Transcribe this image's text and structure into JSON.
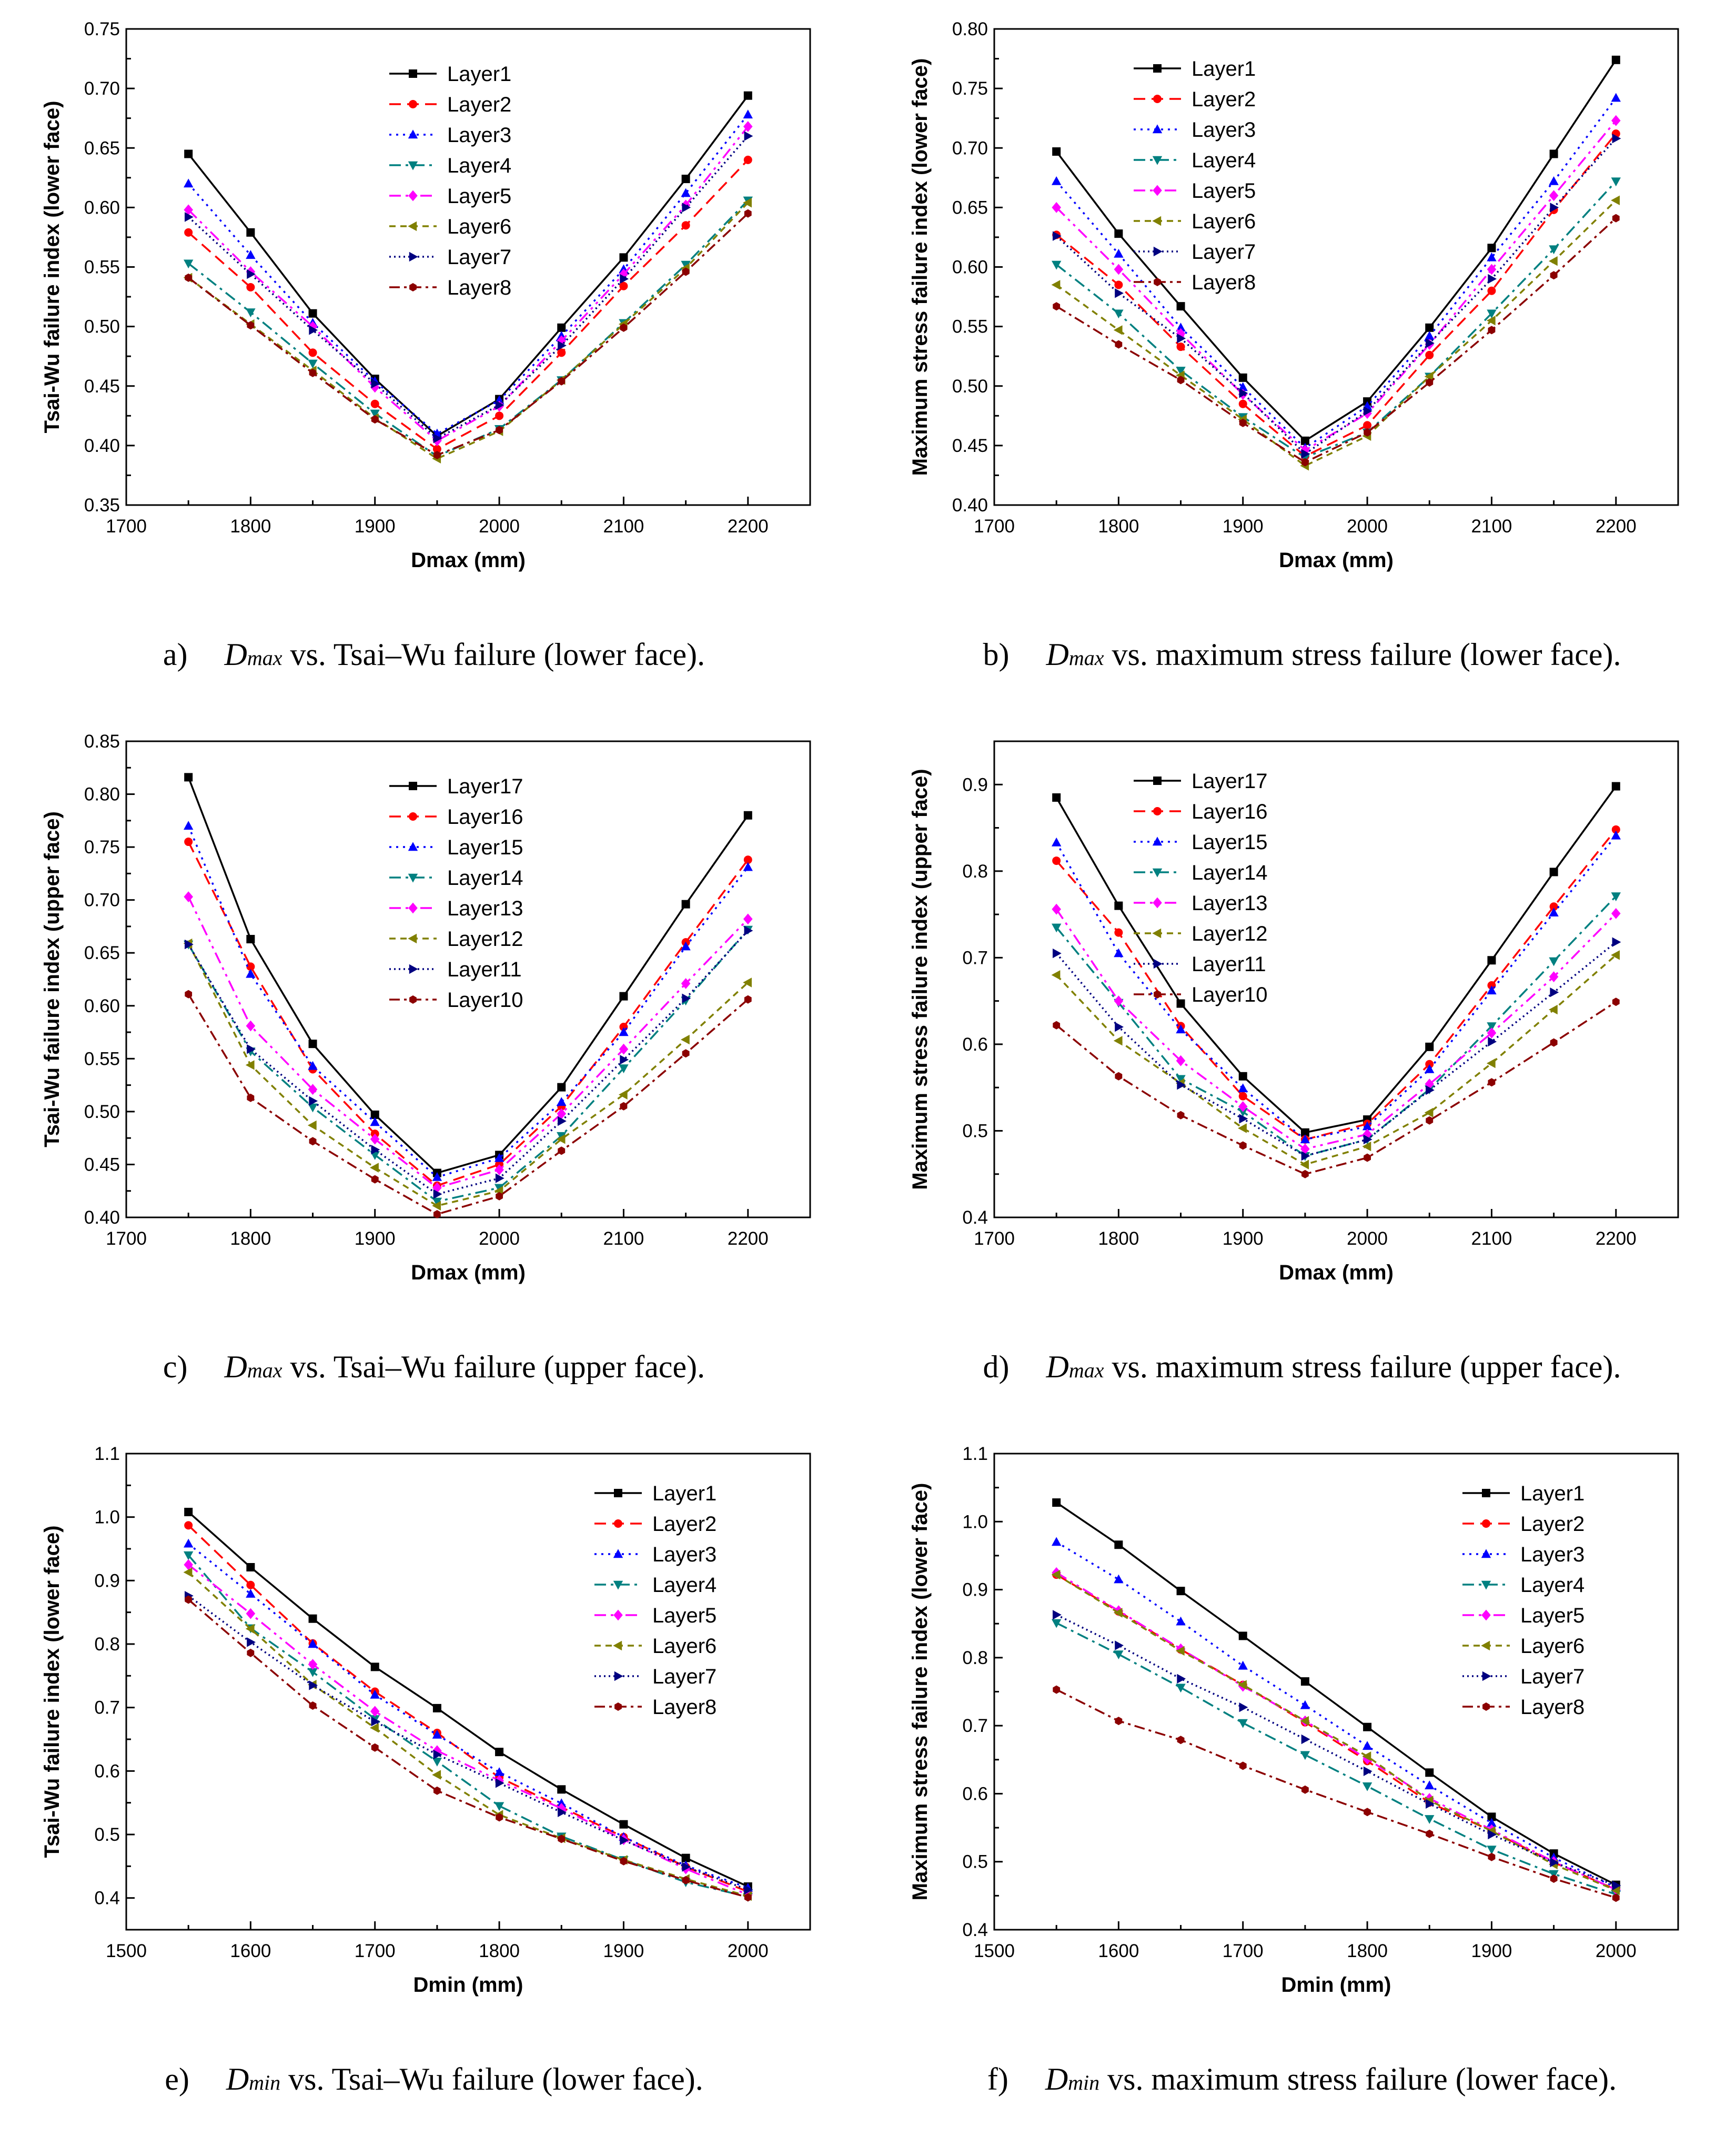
{
  "series_styles": [
    {
      "color": "#000000",
      "dash": "none",
      "marker": "square"
    },
    {
      "color": "#ff0000",
      "dash": "22,12",
      "marker": "circle"
    },
    {
      "color": "#0000ff",
      "dash": "4,9",
      "marker": "triangle-up"
    },
    {
      "color": "#008080",
      "dash": "22,9,5,9",
      "marker": "triangle-down"
    },
    {
      "color": "#ff00ff",
      "dash": "22,9,5,9,5,9",
      "marker": "diamond"
    },
    {
      "color": "#808000",
      "dash": "12,9",
      "marker": "triangle-left"
    },
    {
      "color": "#000080",
      "dash": "3,6",
      "marker": "triangle-right"
    },
    {
      "color": "#8b0000",
      "dash": "20,8,5,8",
      "marker": "hexagon"
    }
  ],
  "chart_data": [
    {
      "type": "line",
      "caption": {
        "label": "a)",
        "var": "D",
        "sub": "max",
        "text": " vs. Tsai–Wu failure (lower face)."
      },
      "xlabel": "Dmax (mm)",
      "ylabel": "Tsai-Wu failure index (lower face)",
      "xlim": [
        1700,
        2250
      ],
      "ylim": [
        0.35,
        0.75
      ],
      "xticks": [
        1700,
        1800,
        1900,
        2000,
        2100,
        2200
      ],
      "yticks": [
        0.35,
        0.4,
        0.45,
        0.5,
        0.55,
        0.6,
        0.65,
        0.7,
        0.75
      ],
      "ydec": 2,
      "legend": "top-center",
      "x": [
        1750,
        1800,
        1850,
        1900,
        1950,
        2000,
        2050,
        2100,
        2150,
        2200
      ],
      "series": [
        {
          "name": "Layer1",
          "values": [
            0.645,
            0.579,
            0.511,
            0.456,
            0.408,
            0.439,
            0.499,
            0.558,
            0.624,
            0.694
          ]
        },
        {
          "name": "Layer2",
          "values": [
            0.579,
            0.533,
            0.478,
            0.435,
            0.397,
            0.425,
            0.478,
            0.534,
            0.585,
            0.64
          ]
        },
        {
          "name": "Layer3",
          "values": [
            0.62,
            0.56,
            0.503,
            0.454,
            0.41,
            0.438,
            0.492,
            0.548,
            0.612,
            0.678
          ]
        },
        {
          "name": "Layer4",
          "values": [
            0.553,
            0.512,
            0.469,
            0.427,
            0.391,
            0.414,
            0.455,
            0.503,
            0.552,
            0.606
          ]
        },
        {
          "name": "Layer5",
          "values": [
            0.598,
            0.546,
            0.5,
            0.449,
            0.404,
            0.433,
            0.488,
            0.544,
            0.602,
            0.668
          ]
        },
        {
          "name": "Layer6",
          "values": [
            0.541,
            0.502,
            0.463,
            0.423,
            0.389,
            0.412,
            0.455,
            0.502,
            0.549,
            0.604
          ]
        },
        {
          "name": "Layer7",
          "values": [
            0.592,
            0.544,
            0.497,
            0.452,
            0.406,
            0.434,
            0.484,
            0.54,
            0.6,
            0.66
          ]
        },
        {
          "name": "Layer8",
          "values": [
            0.541,
            0.501,
            0.461,
            0.422,
            0.392,
            0.413,
            0.454,
            0.499,
            0.546,
            0.595
          ]
        }
      ]
    },
    {
      "type": "line",
      "caption": {
        "label": "b)",
        "var": "D",
        "sub": "max",
        "text": " vs. maximum stress failure (lower face)."
      },
      "xlabel": "Dmax (mm)",
      "ylabel": "Maximum stress failure index (lower face)",
      "xlim": [
        1700,
        2250
      ],
      "ylim": [
        0.4,
        0.8
      ],
      "xticks": [
        1700,
        1800,
        1900,
        2000,
        2100,
        2200
      ],
      "yticks": [
        0.4,
        0.45,
        0.5,
        0.55,
        0.6,
        0.65,
        0.7,
        0.75,
        0.8
      ],
      "ydec": 2,
      "legend": "top-left",
      "x": [
        1750,
        1800,
        1850,
        1900,
        1950,
        2000,
        2050,
        2100,
        2150,
        2200
      ],
      "series": [
        {
          "name": "Layer1",
          "values": [
            0.697,
            0.628,
            0.567,
            0.507,
            0.454,
            0.487,
            0.549,
            0.616,
            0.695,
            0.774
          ]
        },
        {
          "name": "Layer2",
          "values": [
            0.627,
            0.585,
            0.533,
            0.485,
            0.441,
            0.467,
            0.526,
            0.58,
            0.648,
            0.712
          ]
        },
        {
          "name": "Layer3",
          "values": [
            0.672,
            0.611,
            0.549,
            0.499,
            0.448,
            0.483,
            0.542,
            0.608,
            0.672,
            0.742
          ]
        },
        {
          "name": "Layer4",
          "values": [
            0.602,
            0.561,
            0.513,
            0.474,
            0.44,
            0.461,
            0.508,
            0.561,
            0.615,
            0.672
          ]
        },
        {
          "name": "Layer5",
          "values": [
            0.65,
            0.598,
            0.544,
            0.493,
            0.446,
            0.477,
            0.535,
            0.598,
            0.66,
            0.723
          ]
        },
        {
          "name": "Layer6",
          "values": [
            0.585,
            0.547,
            0.509,
            0.472,
            0.433,
            0.458,
            0.508,
            0.555,
            0.605,
            0.656
          ]
        },
        {
          "name": "Layer7",
          "values": [
            0.626,
            0.578,
            0.54,
            0.494,
            0.443,
            0.479,
            0.536,
            0.59,
            0.65,
            0.708
          ]
        },
        {
          "name": "Layer8",
          "values": [
            0.567,
            0.535,
            0.505,
            0.469,
            0.436,
            0.461,
            0.503,
            0.547,
            0.593,
            0.641
          ]
        }
      ]
    },
    {
      "type": "line",
      "caption": {
        "label": "c)",
        "var": "D",
        "sub": "max",
        "text": " vs. Tsai–Wu failure (upper face)."
      },
      "xlabel": "Dmax (mm)",
      "ylabel": "Tsai-Wu failure index (upper face)",
      "xlim": [
        1700,
        2250
      ],
      "ylim": [
        0.4,
        0.85
      ],
      "xticks": [
        1700,
        1800,
        1900,
        2000,
        2100,
        2200
      ],
      "yticks": [
        0.4,
        0.45,
        0.5,
        0.55,
        0.6,
        0.65,
        0.7,
        0.75,
        0.8,
        0.85
      ],
      "ydec": 2,
      "legend": "top-center",
      "x": [
        1750,
        1800,
        1850,
        1900,
        1950,
        2000,
        2050,
        2100,
        2150,
        2200
      ],
      "series": [
        {
          "name": "Layer17",
          "values": [
            0.816,
            0.663,
            0.564,
            0.497,
            0.442,
            0.459,
            0.523,
            0.609,
            0.696,
            0.78
          ]
        },
        {
          "name": "Layer16",
          "values": [
            0.755,
            0.637,
            0.54,
            0.479,
            0.43,
            0.45,
            0.505,
            0.58,
            0.66,
            0.738
          ]
        },
        {
          "name": "Layer15",
          "values": [
            0.77,
            0.63,
            0.543,
            0.49,
            0.438,
            0.456,
            0.509,
            0.575,
            0.656,
            0.731
          ]
        },
        {
          "name": "Layer14",
          "values": [
            0.658,
            0.557,
            0.504,
            0.459,
            0.415,
            0.428,
            0.477,
            0.541,
            0.605,
            0.672
          ]
        },
        {
          "name": "Layer13",
          "values": [
            0.703,
            0.581,
            0.521,
            0.474,
            0.428,
            0.445,
            0.498,
            0.559,
            0.621,
            0.682
          ]
        },
        {
          "name": "Layer12",
          "values": [
            0.659,
            0.544,
            0.487,
            0.447,
            0.411,
            0.425,
            0.474,
            0.516,
            0.568,
            0.622
          ]
        },
        {
          "name": "Layer11",
          "values": [
            0.658,
            0.559,
            0.51,
            0.464,
            0.422,
            0.437,
            0.491,
            0.549,
            0.607,
            0.671
          ]
        },
        {
          "name": "Layer10",
          "values": [
            0.611,
            0.513,
            0.472,
            0.436,
            0.403,
            0.42,
            0.463,
            0.505,
            0.555,
            0.606
          ]
        }
      ]
    },
    {
      "type": "line",
      "caption": {
        "label": "d)",
        "var": "D",
        "sub": "max",
        "text": " vs. maximum stress failure (upper face)."
      },
      "xlabel": "Dmax (mm)",
      "ylabel": "Maximum stress failure index (upper face)",
      "xlim": [
        1700,
        2250
      ],
      "ylim": [
        0.4,
        0.95
      ],
      "xticks": [
        1700,
        1800,
        1900,
        2000,
        2100,
        2200
      ],
      "yticks": [
        0.4,
        0.5,
        0.6,
        0.7,
        0.8,
        0.9
      ],
      "ydec": 1,
      "legend": "top-left",
      "x": [
        1750,
        1800,
        1850,
        1900,
        1950,
        2000,
        2050,
        2100,
        2150,
        2200
      ],
      "series": [
        {
          "name": "Layer17",
          "values": [
            0.885,
            0.76,
            0.647,
            0.563,
            0.498,
            0.513,
            0.597,
            0.697,
            0.799,
            0.898
          ]
        },
        {
          "name": "Layer16",
          "values": [
            0.812,
            0.729,
            0.621,
            0.54,
            0.49,
            0.508,
            0.577,
            0.668,
            0.759,
            0.848
          ]
        },
        {
          "name": "Layer15",
          "values": [
            0.833,
            0.705,
            0.617,
            0.549,
            0.49,
            0.505,
            0.571,
            0.662,
            0.752,
            0.841
          ]
        },
        {
          "name": "Layer14",
          "values": [
            0.735,
            0.648,
            0.56,
            0.522,
            0.471,
            0.49,
            0.548,
            0.621,
            0.696,
            0.771
          ]
        },
        {
          "name": "Layer13",
          "values": [
            0.756,
            0.65,
            0.581,
            0.528,
            0.479,
            0.496,
            0.554,
            0.613,
            0.678,
            0.751
          ]
        },
        {
          "name": "Layer12",
          "values": [
            0.68,
            0.604,
            0.555,
            0.503,
            0.461,
            0.482,
            0.521,
            0.578,
            0.64,
            0.703
          ]
        },
        {
          "name": "Layer11",
          "values": [
            0.705,
            0.62,
            0.553,
            0.514,
            0.471,
            0.49,
            0.547,
            0.603,
            0.66,
            0.718
          ]
        },
        {
          "name": "Layer10",
          "values": [
            0.622,
            0.563,
            0.518,
            0.483,
            0.45,
            0.469,
            0.512,
            0.556,
            0.602,
            0.649
          ]
        }
      ]
    },
    {
      "type": "line",
      "caption": {
        "label": "e)",
        "var": "D",
        "sub": "min",
        "text": " vs. Tsai–Wu failure (lower face)."
      },
      "xlabel": "Dmin (mm)",
      "ylabel": "Tsai-Wu failure index (lower face)",
      "xlim": [
        1500,
        2050
      ],
      "ylim": [
        0.35,
        1.1
      ],
      "xticks": [
        1500,
        1600,
        1700,
        1800,
        1900,
        2000
      ],
      "yticks": [
        0.4,
        0.5,
        0.6,
        0.7,
        0.8,
        0.9,
        1.0,
        1.1
      ],
      "ydec": 1,
      "legend": "top-right",
      "x": [
        1550,
        1600,
        1650,
        1700,
        1750,
        1800,
        1850,
        1900,
        1950,
        2000
      ],
      "series": [
        {
          "name": "Layer1",
          "values": [
            1.008,
            0.921,
            0.84,
            0.764,
            0.699,
            0.63,
            0.571,
            0.516,
            0.463,
            0.418
          ]
        },
        {
          "name": "Layer2",
          "values": [
            0.987,
            0.893,
            0.801,
            0.725,
            0.66,
            0.59,
            0.543,
            0.496,
            0.449,
            0.41
          ]
        },
        {
          "name": "Layer3",
          "values": [
            0.958,
            0.879,
            0.8,
            0.72,
            0.657,
            0.598,
            0.549,
            0.496,
            0.451,
            0.416
          ]
        },
        {
          "name": "Layer4",
          "values": [
            0.94,
            0.825,
            0.756,
            0.682,
            0.615,
            0.545,
            0.497,
            0.46,
            0.425,
            0.402
          ]
        },
        {
          "name": "Layer5",
          "values": [
            0.925,
            0.848,
            0.768,
            0.694,
            0.632,
            0.585,
            0.541,
            0.492,
            0.446,
            0.405
          ]
        },
        {
          "name": "Layer6",
          "values": [
            0.913,
            0.824,
            0.736,
            0.668,
            0.594,
            0.531,
            0.494,
            0.46,
            0.43,
            0.403
          ]
        },
        {
          "name": "Layer7",
          "values": [
            0.876,
            0.803,
            0.735,
            0.678,
            0.626,
            0.581,
            0.535,
            0.491,
            0.449,
            0.413
          ]
        },
        {
          "name": "Layer8",
          "values": [
            0.87,
            0.786,
            0.703,
            0.637,
            0.569,
            0.527,
            0.493,
            0.458,
            0.428,
            0.401
          ]
        }
      ]
    },
    {
      "type": "line",
      "caption": {
        "label": "f)",
        "var": "D",
        "sub": "min",
        "text": " vs. maximum stress failure (lower face)."
      },
      "xlabel": "Dmin (mm)",
      "ylabel": "Maximum stress failure index (lower face)",
      "xlim": [
        1500,
        2050
      ],
      "ylim": [
        0.4,
        1.1
      ],
      "xticks": [
        1500,
        1600,
        1700,
        1800,
        1900,
        2000
      ],
      "yticks": [
        0.4,
        0.5,
        0.6,
        0.7,
        0.8,
        0.9,
        1.0,
        1.1
      ],
      "ydec": 1,
      "legend": "top-right",
      "x": [
        1550,
        1600,
        1650,
        1700,
        1750,
        1800,
        1850,
        1900,
        1950,
        2000
      ],
      "series": [
        {
          "name": "Layer1",
          "values": [
            1.028,
            0.966,
            0.898,
            0.832,
            0.765,
            0.698,
            0.631,
            0.566,
            0.512,
            0.466
          ]
        },
        {
          "name": "Layer2",
          "values": [
            0.922,
            0.868,
            0.812,
            0.76,
            0.705,
            0.648,
            0.587,
            0.545,
            0.499,
            0.459
          ]
        },
        {
          "name": "Layer3",
          "values": [
            0.97,
            0.915,
            0.853,
            0.788,
            0.73,
            0.67,
            0.612,
            0.557,
            0.506,
            0.462
          ]
        },
        {
          "name": "Layer4",
          "values": [
            0.851,
            0.805,
            0.756,
            0.704,
            0.657,
            0.611,
            0.563,
            0.518,
            0.482,
            0.452
          ]
        },
        {
          "name": "Layer5",
          "values": [
            0.925,
            0.869,
            0.813,
            0.758,
            0.707,
            0.651,
            0.593,
            0.547,
            0.5,
            0.459
          ]
        },
        {
          "name": "Layer6",
          "values": [
            0.922,
            0.866,
            0.81,
            0.76,
            0.707,
            0.655,
            0.59,
            0.545,
            0.496,
            0.458
          ]
        },
        {
          "name": "Layer7",
          "values": [
            0.863,
            0.818,
            0.769,
            0.727,
            0.68,
            0.633,
            0.585,
            0.54,
            0.499,
            0.465
          ]
        },
        {
          "name": "Layer8",
          "values": [
            0.753,
            0.707,
            0.679,
            0.641,
            0.606,
            0.573,
            0.541,
            0.507,
            0.475,
            0.447
          ]
        }
      ]
    }
  ]
}
